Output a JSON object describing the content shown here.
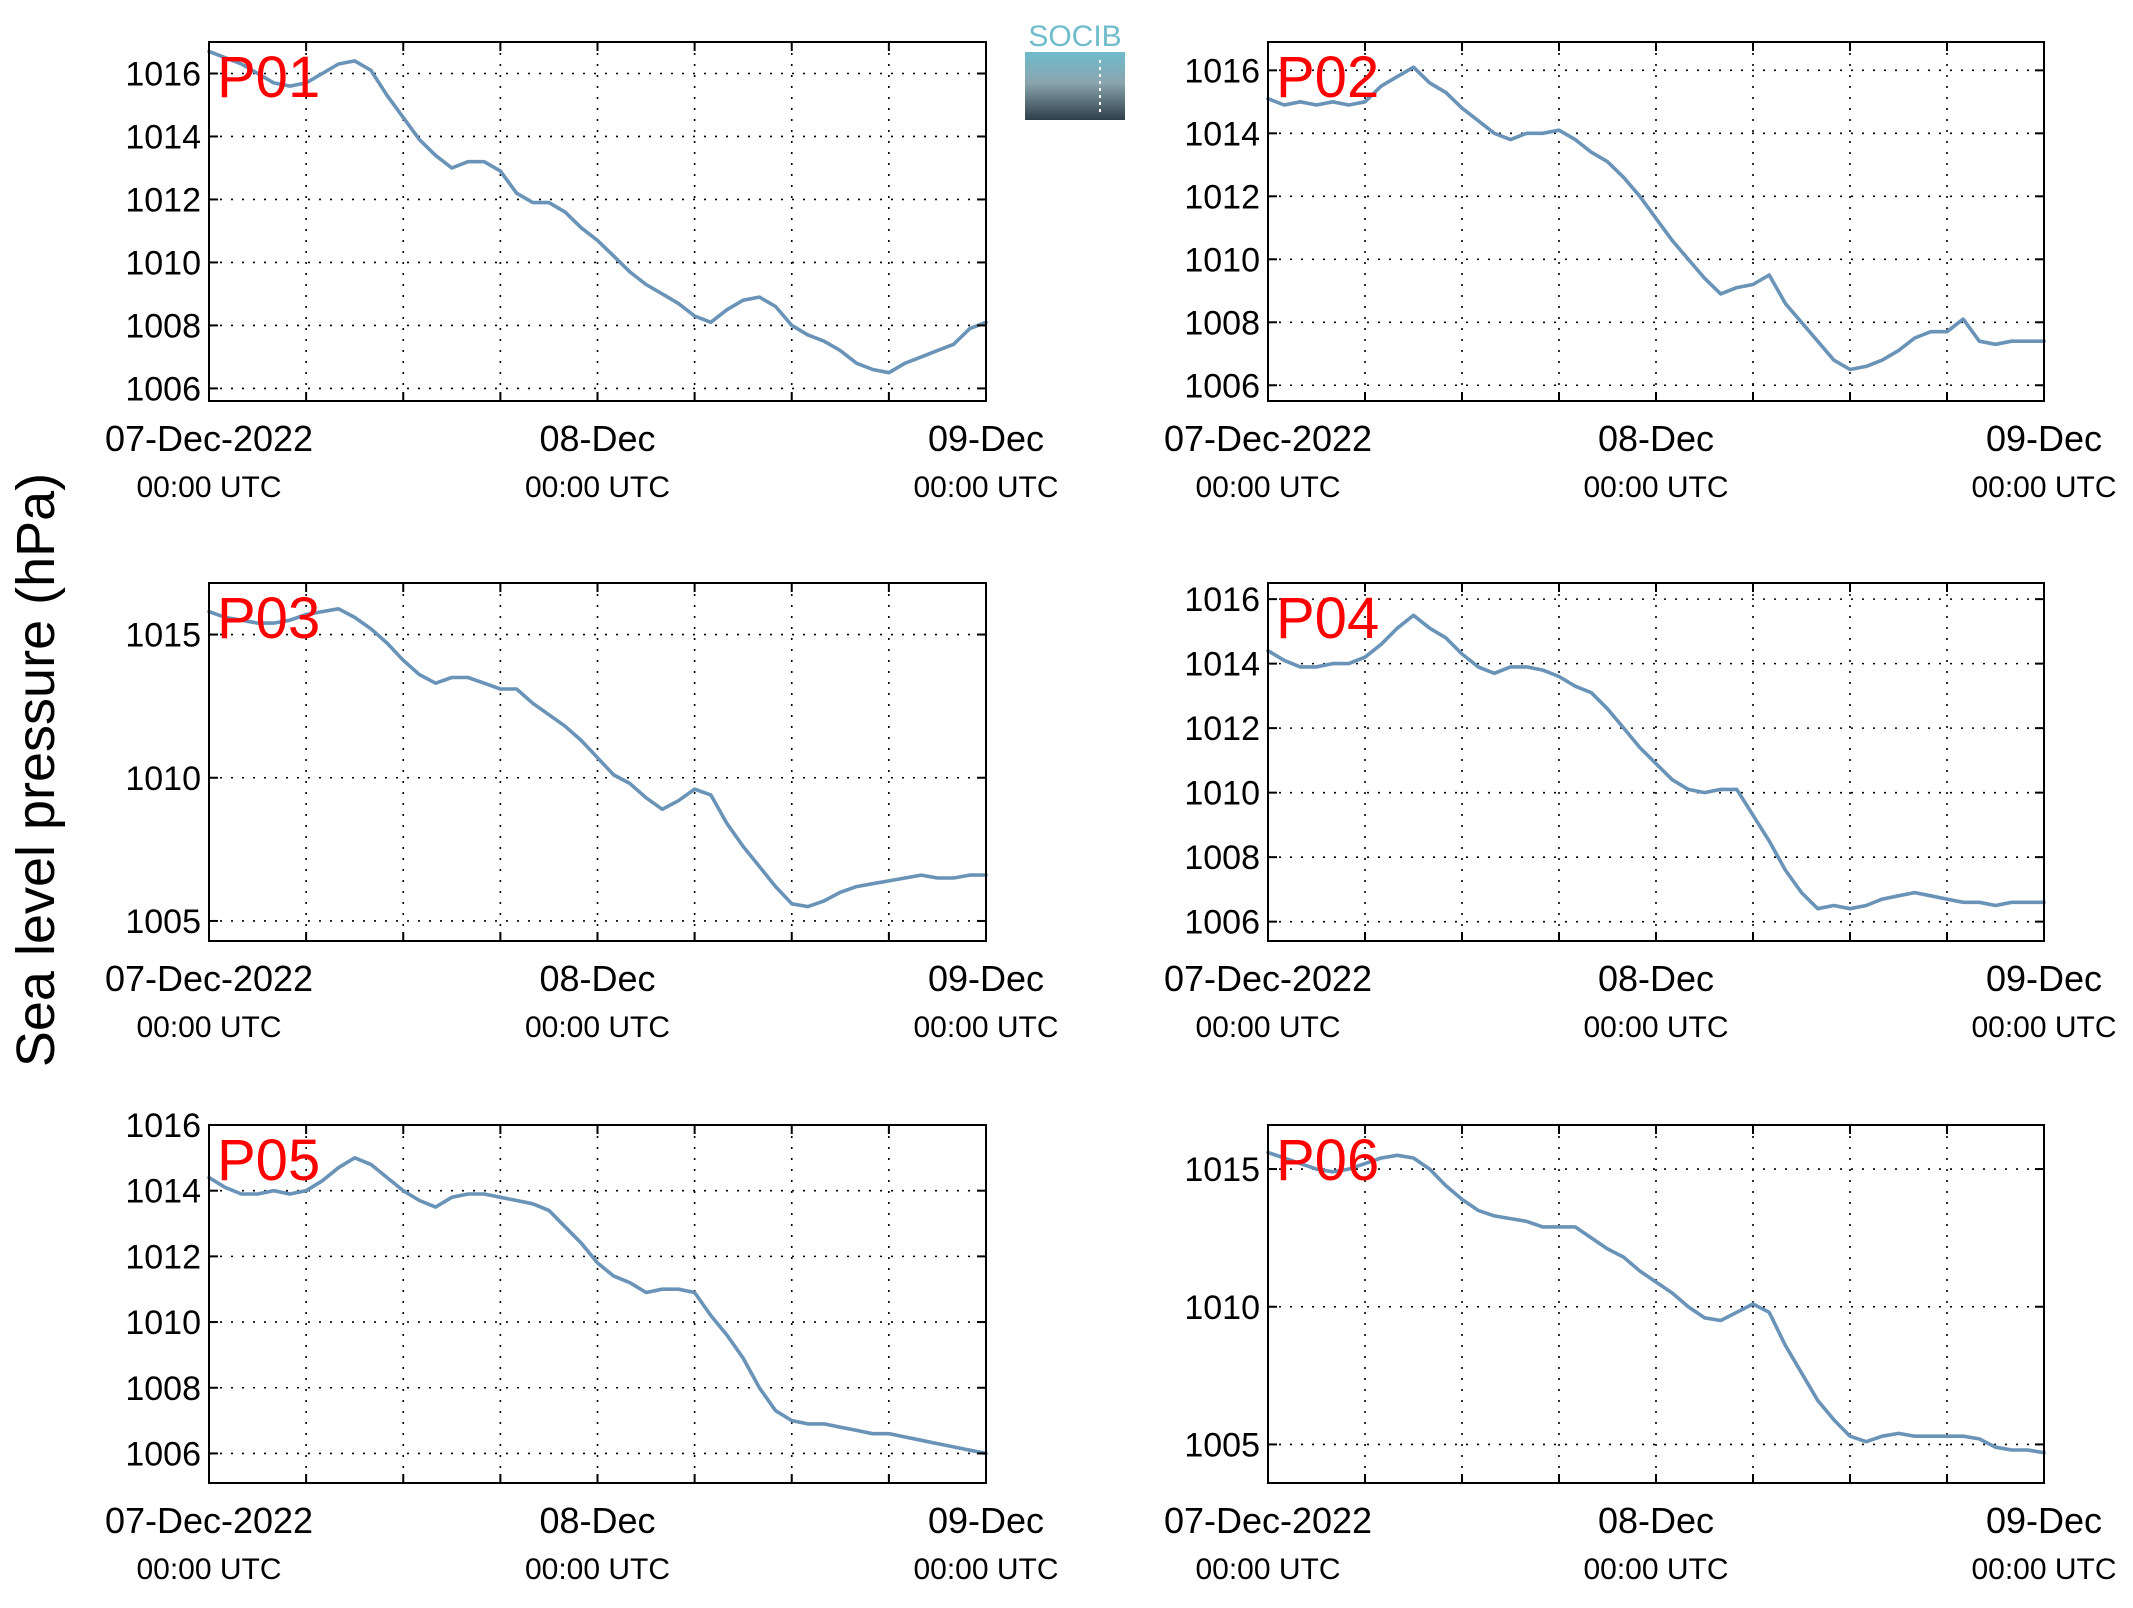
{
  "figure": {
    "ylabel": "Sea level pressure (hPa)",
    "logo_text": "SOCIB",
    "colors": {
      "line": "#6a93b8",
      "panel_label": "#ff0000",
      "axis": "#000000",
      "grid": "#000000"
    }
  },
  "chart_data": [
    {
      "type": "line",
      "panel_label": "P01",
      "x_tick_labels": [
        [
          "07-Dec-2022",
          "00:00 UTC"
        ],
        [
          "08-Dec",
          "00:00 UTC"
        ],
        [
          "09-Dec",
          "00:00 UTC"
        ]
      ],
      "x_range_hours": [
        0,
        48
      ],
      "ylim": [
        1005.6,
        1017.0
      ],
      "yticks": [
        1006,
        1008,
        1010,
        1012,
        1014,
        1016
      ],
      "grid": true,
      "series": [
        {
          "x": [
            0,
            1,
            2,
            3,
            4,
            5,
            6,
            7,
            8,
            9,
            10,
            11,
            12,
            13,
            14,
            15,
            16,
            17,
            18,
            19,
            20,
            21,
            22,
            23,
            24,
            25,
            26,
            27,
            28,
            29,
            30,
            31,
            32,
            33,
            34,
            35,
            36,
            37,
            38,
            39,
            40,
            41,
            42,
            43,
            44,
            45,
            46,
            47,
            48
          ],
          "values": [
            1016.7,
            1016.5,
            1016.3,
            1016.0,
            1015.7,
            1015.6,
            1015.7,
            1016.0,
            1016.3,
            1016.4,
            1016.1,
            1015.3,
            1014.6,
            1013.9,
            1013.4,
            1013.0,
            1013.2,
            1013.2,
            1012.9,
            1012.2,
            1011.9,
            1011.9,
            1011.6,
            1011.1,
            1010.7,
            1010.2,
            1009.7,
            1009.3,
            1009.0,
            1008.7,
            1008.3,
            1008.1,
            1008.5,
            1008.8,
            1008.9,
            1008.6,
            1008.0,
            1007.7,
            1007.5,
            1007.2,
            1006.8,
            1006.6,
            1006.5,
            1006.8,
            1007.0,
            1007.2,
            1007.4,
            1007.9,
            1008.1
          ]
        }
      ]
    },
    {
      "type": "line",
      "panel_label": "P02",
      "x_tick_labels": [
        [
          "07-Dec-2022",
          "00:00 UTC"
        ],
        [
          "08-Dec",
          "00:00 UTC"
        ],
        [
          "09-Dec",
          "00:00 UTC"
        ]
      ],
      "x_range_hours": [
        0,
        48
      ],
      "ylim": [
        1005.5,
        1016.9
      ],
      "yticks": [
        1006,
        1008,
        1010,
        1012,
        1014,
        1016
      ],
      "grid": true,
      "series": [
        {
          "x": [
            0,
            1,
            2,
            3,
            4,
            5,
            6,
            7,
            8,
            9,
            10,
            11,
            12,
            13,
            14,
            15,
            16,
            17,
            18,
            19,
            20,
            21,
            22,
            23,
            24,
            25,
            26,
            27,
            28,
            29,
            30,
            31,
            32,
            33,
            34,
            35,
            36,
            37,
            38,
            39,
            40,
            41,
            42,
            43,
            44,
            45,
            46,
            47,
            48
          ],
          "values": [
            1015.1,
            1014.9,
            1015.0,
            1014.9,
            1015.0,
            1014.9,
            1015.0,
            1015.5,
            1015.8,
            1016.1,
            1015.6,
            1015.3,
            1014.8,
            1014.4,
            1014.0,
            1013.8,
            1014.0,
            1014.0,
            1014.1,
            1013.8,
            1013.4,
            1013.1,
            1012.6,
            1012.0,
            1011.3,
            1010.6,
            1010.0,
            1009.4,
            1008.9,
            1009.1,
            1009.2,
            1009.5,
            1008.6,
            1008.0,
            1007.4,
            1006.8,
            1006.5,
            1006.6,
            1006.8,
            1007.1,
            1007.5,
            1007.7,
            1007.7,
            1008.1,
            1007.4,
            1007.3,
            1007.4,
            1007.4,
            1007.4
          ]
        }
      ]
    },
    {
      "type": "line",
      "panel_label": "P03",
      "x_tick_labels": [
        [
          "07-Dec-2022",
          "00:00 UTC"
        ],
        [
          "08-Dec",
          "00:00 UTC"
        ],
        [
          "09-Dec",
          "00:00 UTC"
        ]
      ],
      "x_range_hours": [
        0,
        48
      ],
      "ylim": [
        1004.3,
        1016.8
      ],
      "yticks": [
        1005,
        1010,
        1015
      ],
      "grid": true,
      "series": [
        {
          "x": [
            0,
            1,
            2,
            3,
            4,
            5,
            6,
            7,
            8,
            9,
            10,
            11,
            12,
            13,
            14,
            15,
            16,
            17,
            18,
            19,
            20,
            21,
            22,
            23,
            24,
            25,
            26,
            27,
            28,
            29,
            30,
            31,
            32,
            33,
            34,
            35,
            36,
            37,
            38,
            39,
            40,
            41,
            42,
            43,
            44,
            45,
            46,
            47,
            48
          ],
          "values": [
            1015.8,
            1015.6,
            1015.5,
            1015.4,
            1015.4,
            1015.5,
            1015.7,
            1015.8,
            1015.9,
            1015.6,
            1015.2,
            1014.7,
            1014.1,
            1013.6,
            1013.3,
            1013.5,
            1013.5,
            1013.3,
            1013.1,
            1013.1,
            1012.6,
            1012.2,
            1011.8,
            1011.3,
            1010.7,
            1010.1,
            1009.8,
            1009.3,
            1008.9,
            1009.2,
            1009.6,
            1009.4,
            1008.4,
            1007.6,
            1006.9,
            1006.2,
            1005.6,
            1005.5,
            1005.7,
            1006.0,
            1006.2,
            1006.3,
            1006.4,
            1006.5,
            1006.6,
            1006.5,
            1006.5,
            1006.6,
            1006.6
          ]
        }
      ]
    },
    {
      "type": "line",
      "panel_label": "P04",
      "x_tick_labels": [
        [
          "07-Dec-2022",
          "00:00 UTC"
        ],
        [
          "08-Dec",
          "00:00 UTC"
        ],
        [
          "09-Dec",
          "00:00 UTC"
        ]
      ],
      "x_range_hours": [
        0,
        48
      ],
      "ylim": [
        1005.4,
        1016.5
      ],
      "yticks": [
        1006,
        1008,
        1010,
        1012,
        1014,
        1016
      ],
      "grid": true,
      "series": [
        {
          "x": [
            0,
            1,
            2,
            3,
            4,
            5,
            6,
            7,
            8,
            9,
            10,
            11,
            12,
            13,
            14,
            15,
            16,
            17,
            18,
            19,
            20,
            21,
            22,
            23,
            24,
            25,
            26,
            27,
            28,
            29,
            30,
            31,
            32,
            33,
            34,
            35,
            36,
            37,
            38,
            39,
            40,
            41,
            42,
            43,
            44,
            45,
            46,
            47,
            48
          ],
          "values": [
            1014.4,
            1014.1,
            1013.9,
            1013.9,
            1014.0,
            1014.0,
            1014.2,
            1014.6,
            1015.1,
            1015.5,
            1015.1,
            1014.8,
            1014.3,
            1013.9,
            1013.7,
            1013.9,
            1013.9,
            1013.8,
            1013.6,
            1013.3,
            1013.1,
            1012.6,
            1012.0,
            1011.4,
            1010.9,
            1010.4,
            1010.1,
            1010.0,
            1010.1,
            1010.1,
            1009.3,
            1008.5,
            1007.6,
            1006.9,
            1006.4,
            1006.5,
            1006.4,
            1006.5,
            1006.7,
            1006.8,
            1006.9,
            1006.8,
            1006.7,
            1006.6,
            1006.6,
            1006.5,
            1006.6,
            1006.6,
            1006.6
          ]
        }
      ]
    },
    {
      "type": "line",
      "panel_label": "P05",
      "x_tick_labels": [
        [
          "07-Dec-2022",
          "00:00 UTC"
        ],
        [
          "08-Dec",
          "00:00 UTC"
        ],
        [
          "09-Dec",
          "00:00 UTC"
        ]
      ],
      "x_range_hours": [
        0,
        48
      ],
      "ylim": [
        1005.1,
        1016.0
      ],
      "yticks": [
        1006,
        1008,
        1010,
        1012,
        1014,
        1016
      ],
      "grid": true,
      "series": [
        {
          "x": [
            0,
            1,
            2,
            3,
            4,
            5,
            6,
            7,
            8,
            9,
            10,
            11,
            12,
            13,
            14,
            15,
            16,
            17,
            18,
            19,
            20,
            21,
            22,
            23,
            24,
            25,
            26,
            27,
            28,
            29,
            30,
            31,
            32,
            33,
            34,
            35,
            36,
            37,
            38,
            39,
            40,
            41,
            42,
            43,
            44,
            45,
            46,
            47,
            48
          ],
          "values": [
            1014.4,
            1014.1,
            1013.9,
            1013.9,
            1014.0,
            1013.9,
            1014.0,
            1014.3,
            1014.7,
            1015.0,
            1014.8,
            1014.4,
            1014.0,
            1013.7,
            1013.5,
            1013.8,
            1013.9,
            1013.9,
            1013.8,
            1013.7,
            1013.6,
            1013.4,
            1012.9,
            1012.4,
            1011.8,
            1011.4,
            1011.2,
            1010.9,
            1011.0,
            1011.0,
            1010.9,
            1010.2,
            1009.6,
            1008.9,
            1008.0,
            1007.3,
            1007.0,
            1006.9,
            1006.9,
            1006.8,
            1006.7,
            1006.6,
            1006.6,
            1006.5,
            1006.4,
            1006.3,
            1006.2,
            1006.1,
            1006.0
          ]
        }
      ]
    },
    {
      "type": "line",
      "panel_label": "P06",
      "x_tick_labels": [
        [
          "07-Dec-2022",
          "00:00 UTC"
        ],
        [
          "08-Dec",
          "00:00 UTC"
        ],
        [
          "09-Dec",
          "00:00 UTC"
        ]
      ],
      "x_range_hours": [
        0,
        48
      ],
      "ylim": [
        1003.6,
        1016.6
      ],
      "yticks": [
        1005,
        1010,
        1015
      ],
      "grid": true,
      "series": [
        {
          "x": [
            0,
            1,
            2,
            3,
            4,
            5,
            6,
            7,
            8,
            9,
            10,
            11,
            12,
            13,
            14,
            15,
            16,
            17,
            18,
            19,
            20,
            21,
            22,
            23,
            24,
            25,
            26,
            27,
            28,
            29,
            30,
            31,
            32,
            33,
            34,
            35,
            36,
            37,
            38,
            39,
            40,
            41,
            42,
            43,
            44,
            45,
            46,
            47,
            48
          ],
          "values": [
            1015.6,
            1015.4,
            1015.2,
            1015.0,
            1014.9,
            1015.0,
            1015.2,
            1015.4,
            1015.5,
            1015.4,
            1015.0,
            1014.4,
            1013.9,
            1013.5,
            1013.3,
            1013.2,
            1013.1,
            1012.9,
            1012.9,
            1012.9,
            1012.5,
            1012.1,
            1011.8,
            1011.3,
            1010.9,
            1010.5,
            1010.0,
            1009.6,
            1009.5,
            1009.8,
            1010.1,
            1009.8,
            1008.6,
            1007.6,
            1006.6,
            1005.9,
            1005.3,
            1005.1,
            1005.3,
            1005.4,
            1005.3,
            1005.3,
            1005.3,
            1005.3,
            1005.2,
            1004.9,
            1004.8,
            1004.8,
            1004.7
          ]
        }
      ]
    }
  ]
}
